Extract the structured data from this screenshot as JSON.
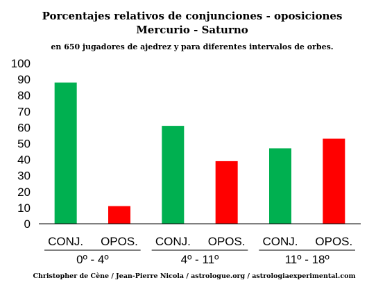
{
  "chart_data": {
    "type": "bar",
    "title": "Porcentajes relativos de conjunciones - oposiciones",
    "subtitle": "Mercurio - Saturno",
    "subtitle2": "en 650 jugadores de ajedrez y para diferentes intervalos de orbes.",
    "xlabel": "",
    "ylabel": "",
    "ylim": [
      0,
      100
    ],
    "yticks": [
      "0",
      "10",
      "20",
      "30",
      "40",
      "50",
      "60",
      "70",
      "80",
      "90",
      "100"
    ],
    "grid": false,
    "groups": [
      "0º - 4º",
      "4º - 11º",
      "11º - 18º"
    ],
    "categories": [
      "CONJ.",
      "OPOS.",
      "CONJ.",
      "OPOS.",
      "CONJ.",
      "OPOS."
    ],
    "values": [
      88,
      11,
      61,
      39,
      47,
      53
    ],
    "colors": [
      "#00b050",
      "#ff0000",
      "#00b050",
      "#ff0000",
      "#00b050",
      "#ff0000"
    ],
    "footer": "Christopher de Cène  / Jean-Pierre Nicola / astrologue.org / astrologiaexperimental.com"
  }
}
